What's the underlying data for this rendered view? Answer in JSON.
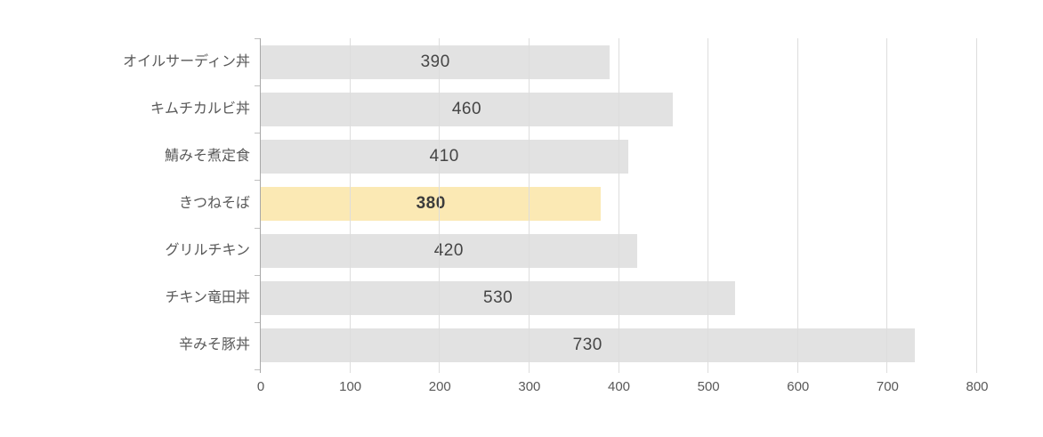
{
  "chart_data": {
    "type": "bar",
    "orientation": "horizontal",
    "title": "",
    "categories": [
      "オイルサーディン丼",
      "キムチカルビ丼",
      "鯖みそ煮定食",
      "きつねそば",
      "グリルチキン",
      "チキン竜田丼",
      "辛みそ豚丼"
    ],
    "values": [
      390,
      460,
      410,
      380,
      420,
      530,
      730
    ],
    "highlighted_index": 3,
    "highlighted_category": "きつねそば",
    "highlighted_value": 380,
    "xlim": [
      0,
      800
    ],
    "x_ticks": [
      0,
      100,
      200,
      300,
      400,
      500,
      600,
      700,
      800
    ],
    "grid": true,
    "legend": "none",
    "data_label_position": "center",
    "colors": {
      "bar": "#E2E2E2",
      "highlight_bar": "#FBE9B4",
      "data_label": "#454545",
      "axis_text": "#595959",
      "gridline": "#DDDDDD",
      "axis_line": "#A8A8A8",
      "background": "#FFFFFF"
    }
  }
}
